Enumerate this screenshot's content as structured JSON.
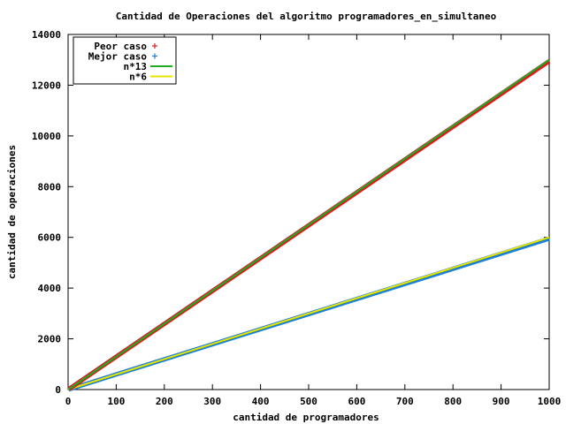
{
  "chart_data": {
    "type": "scatter",
    "title": "Cantidad de Operaciones del algoritmo programadores_en_simultaneo",
    "xlabel": "cantidad de programadores",
    "ylabel": "cantidad de operaciones",
    "xlim": [
      0,
      1000
    ],
    "ylim": [
      0,
      14000
    ],
    "xticks": [
      "0",
      "100",
      "200",
      "300",
      "400",
      "500",
      "600",
      "700",
      "800",
      "900",
      "1000"
    ],
    "yticks": [
      "0",
      "2000",
      "4000",
      "6000",
      "8000",
      "10000",
      "12000",
      "14000"
    ],
    "grid": false,
    "legend_position": "top-left",
    "series": [
      {
        "name": "Peor caso",
        "kind": "points",
        "color": "#d62020",
        "x": [
          1,
          1000
        ],
        "y": [
          13,
          12950
        ]
      },
      {
        "name": "Mejor caso",
        "kind": "points",
        "color": "#1f7fd0",
        "x": [
          1,
          1000
        ],
        "y": [
          6,
          5950
        ]
      },
      {
        "name": "n*13",
        "kind": "line",
        "color": "#22aa22",
        "x": [
          0,
          1000
        ],
        "y": [
          0,
          13000
        ]
      },
      {
        "name": "n*6",
        "kind": "line",
        "color": "#e6e600",
        "x": [
          0,
          1000
        ],
        "y": [
          0,
          6000
        ]
      }
    ]
  }
}
